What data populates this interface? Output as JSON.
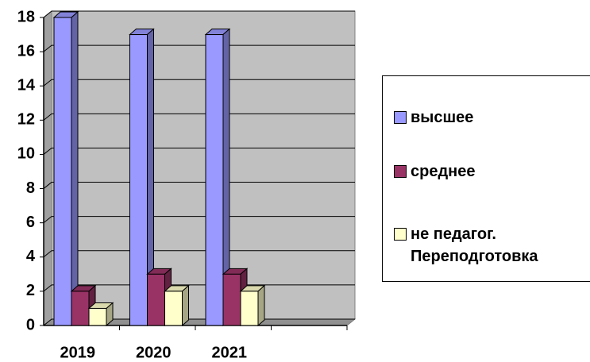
{
  "chart_data": {
    "type": "bar3d",
    "categories": [
      "2019",
      "2020",
      "2021",
      null
    ],
    "series": [
      {
        "name": "высшее",
        "color": "#9999ff",
        "values": [
          18,
          17,
          17,
          null
        ]
      },
      {
        "name": "среднее",
        "color": "#993366",
        "values": [
          2,
          3,
          3,
          null
        ]
      },
      {
        "name": "не педагог. Переподготовка",
        "color": "#ffffcc",
        "values": [
          1,
          2,
          2,
          null
        ]
      }
    ],
    "ylim": [
      0,
      18
    ],
    "yticks": [
      0,
      2,
      4,
      6,
      8,
      10,
      12,
      14,
      16,
      18
    ],
    "grid": true,
    "legend": "right"
  }
}
